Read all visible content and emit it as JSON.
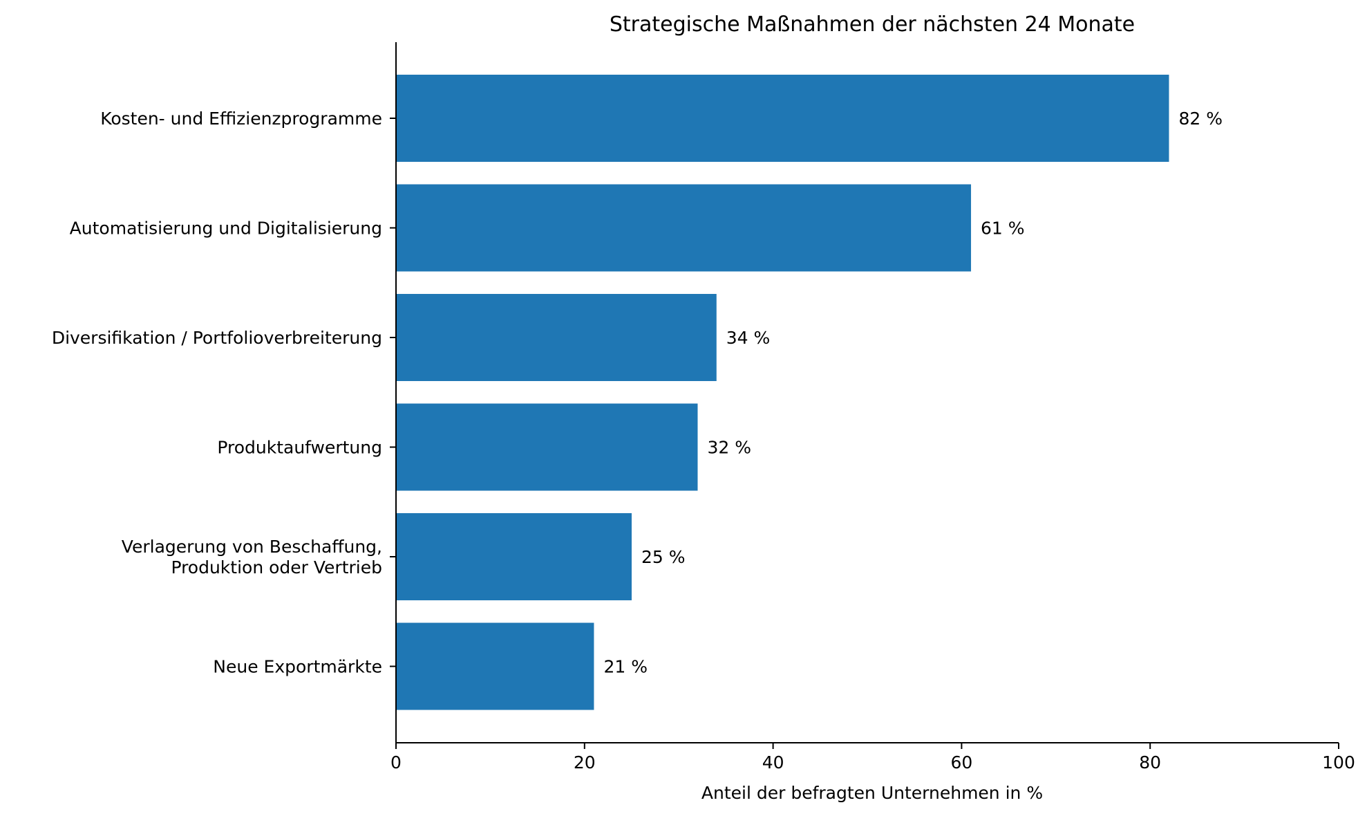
{
  "chart_data": {
    "type": "bar",
    "orientation": "horizontal",
    "title": "Strategische Maßnahmen der nächsten 24 Monate",
    "xlabel": "Anteil der befragten Unternehmen in %",
    "ylabel": "",
    "categories": [
      "Kosten- und Effizienzprogramme",
      "Automatisierung und Digitalisierung",
      "Diversifikation / Portfolioverbreiterung",
      "Produktaufwertung",
      "Verlagerung von Beschaffung,\nProduktion oder Vertrieb",
      "Neue Exportmärkte"
    ],
    "values": [
      82,
      61,
      34,
      32,
      25,
      21
    ],
    "data_labels": [
      "82 %",
      "61 %",
      "34 %",
      "32 %",
      "25 %",
      "21 %"
    ],
    "xlim": [
      0,
      100
    ],
    "xticks": [
      0,
      20,
      40,
      60,
      80,
      100
    ],
    "grid": false,
    "legend": "none",
    "bar_color": "#1f77b4"
  }
}
